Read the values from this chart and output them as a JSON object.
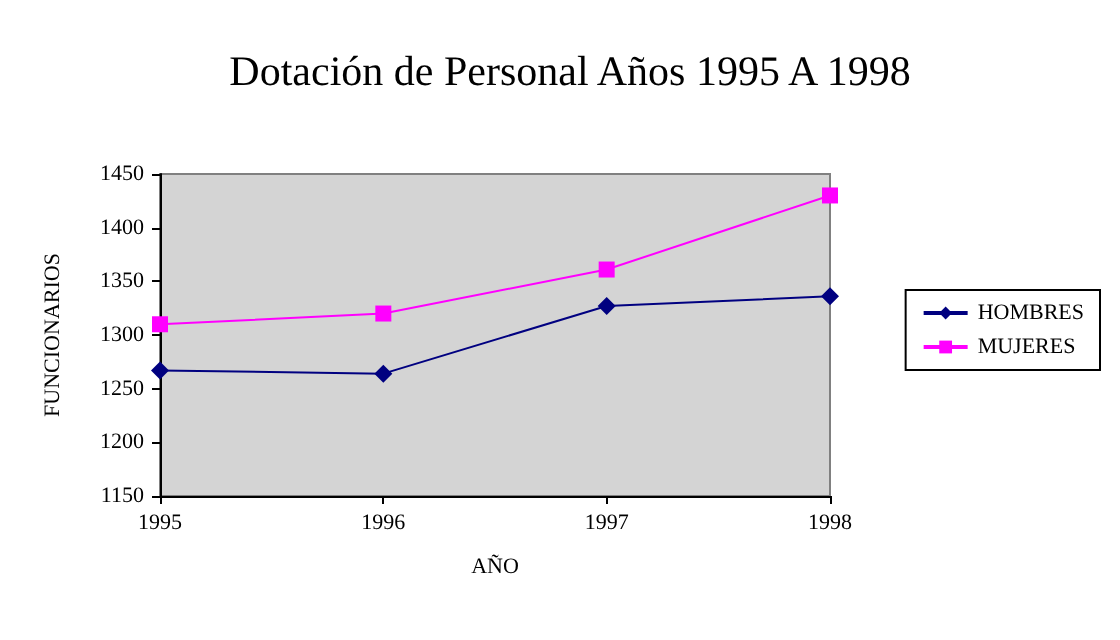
{
  "chart_data": {
    "type": "line",
    "title": "Dotación de Personal Años 1995 A 1998",
    "xlabel": "AÑO",
    "ylabel": "FUNCIONARIOS",
    "categories": [
      "1995",
      "1996",
      "1997",
      "1998"
    ],
    "series": [
      {
        "name": "HOMBRES",
        "color": "#000080",
        "marker": "diamond",
        "values": [
          1267,
          1264,
          1327,
          1336
        ]
      },
      {
        "name": "MUJERES",
        "color": "#ff00ff",
        "marker": "square",
        "values": [
          1310,
          1320,
          1361,
          1430
        ]
      }
    ],
    "ylim": [
      1150,
      1450
    ],
    "yticks": [
      1150,
      1200,
      1250,
      1300,
      1350,
      1400,
      1450
    ],
    "grid": false,
    "legend": "right",
    "line_style": "solid"
  }
}
